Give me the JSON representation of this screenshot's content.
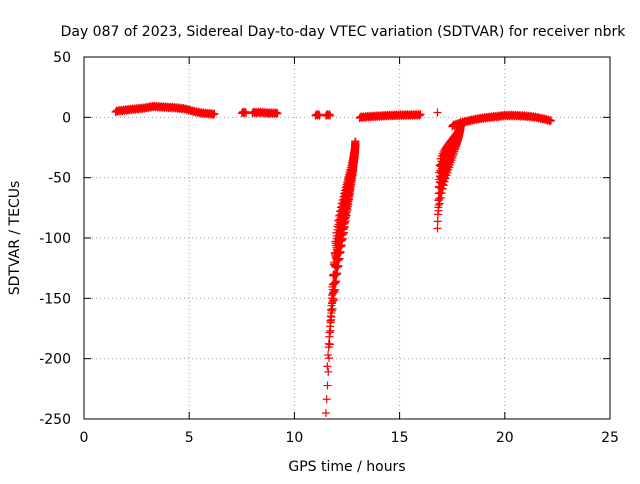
{
  "chart_data": {
    "type": "scatter",
    "title": "Day 087 of 2023, Sidereal Day-to-day VTEC variation (SDTVAR) for receiver nbrk",
    "xlabel": "GPS time / hours",
    "ylabel": "SDTVAR / TECUs",
    "xlim": [
      0,
      25
    ],
    "ylim": [
      -250,
      50
    ],
    "xticks": [
      0,
      5,
      10,
      15,
      20,
      25
    ],
    "yticks": [
      50,
      0,
      -50,
      -100,
      -150,
      -200,
      -250
    ],
    "grid": true,
    "marker": "+",
    "color": "#ff0000",
    "series": [
      {
        "name": "SDTVAR",
        "segments": [
          {
            "kind": "line",
            "x": [
              1.5,
              2.2,
              2.8,
              3.3,
              3.8,
              4.3,
              4.8,
              5.2,
              5.6,
              6.0,
              6.2
            ],
            "y": [
              5,
              6.5,
              7.5,
              9,
              8.5,
              8,
              7,
              5,
              3.5,
              3,
              2.5
            ]
          },
          {
            "kind": "line",
            "x": [
              7.5,
              7.7
            ],
            "y": [
              4,
              4
            ]
          },
          {
            "kind": "line",
            "x": [
              8.0,
              8.4,
              8.8,
              9.2
            ],
            "y": [
              4,
              4,
              3.5,
              3.5
            ]
          },
          {
            "kind": "line",
            "x": [
              11.0,
              11.2
            ],
            "y": [
              2,
              2
            ]
          },
          {
            "kind": "line",
            "x": [
              11.5,
              11.7
            ],
            "y": [
              2,
              2
            ]
          },
          {
            "kind": "line",
            "x": [
              13.1,
              13.5,
              14.0,
              14.5,
              15.0,
              15.5,
              16.0
            ],
            "y": [
              0,
              0.5,
              1,
              1.5,
              1.8,
              2,
              2
            ]
          },
          {
            "kind": "line",
            "x": [
              16.8
            ],
            "y": [
              4
            ]
          },
          {
            "kind": "line",
            "x": [
              17.5,
              18.0,
              18.5,
              19.0,
              19.5,
              20.0,
              20.5,
              21.0,
              21.5,
              22.0,
              22.2
            ],
            "y": [
              -7,
              -4,
              -2,
              -0.5,
              0.5,
              1.5,
              1.5,
              1,
              0,
              -2,
              -3
            ]
          },
          {
            "kind": "dip",
            "lines": 12,
            "x_bottom": 11.5,
            "y_bottom": -245,
            "x_top": 11.9,
            "y_top": -120,
            "x_end": 12.9,
            "y_end": -20
          },
          {
            "kind": "dip",
            "lines": 10,
            "x_bottom": 16.8,
            "y_bottom": -92,
            "x_top": 16.9,
            "y_top": -40,
            "x_end": 17.9,
            "y_end": -7
          }
        ]
      }
    ]
  }
}
